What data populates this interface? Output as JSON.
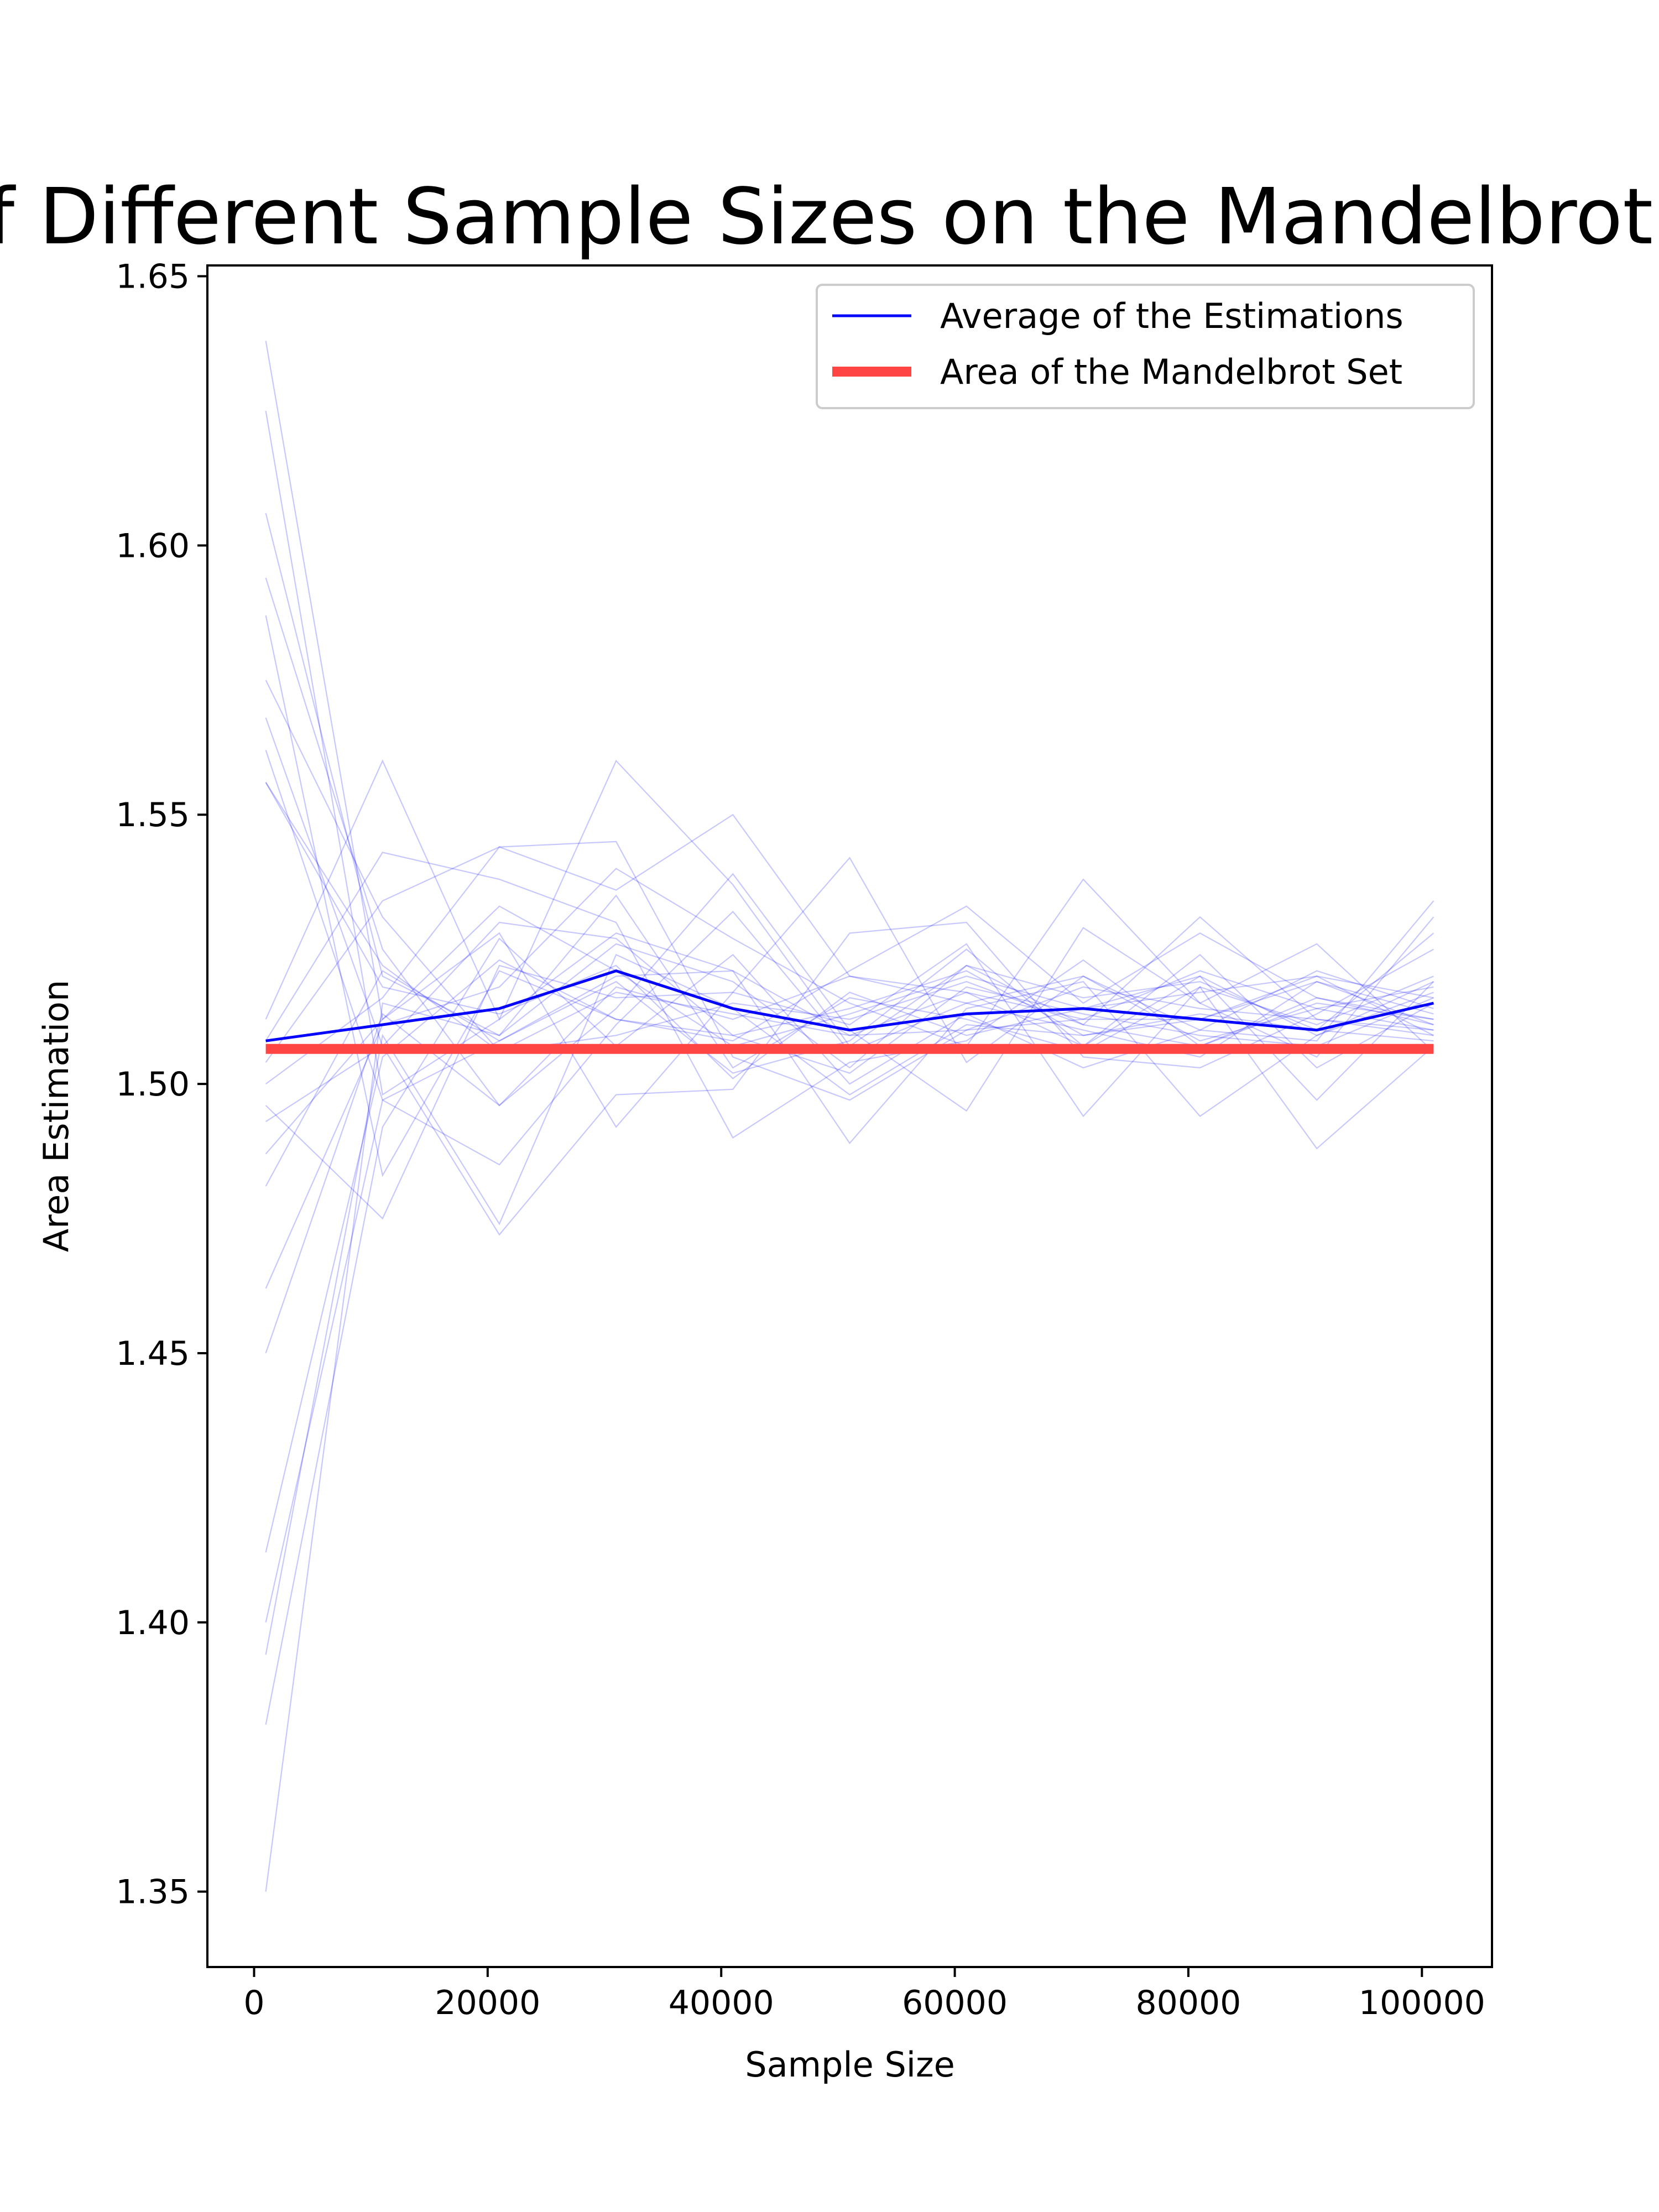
{
  "chart_data": {
    "type": "line",
    "title": "Effect of Different Sample Sizes on the Mandelbrot Set Area",
    "xlabel": "Sample Size",
    "ylabel": "Area Estimation",
    "xlim": [
      -4000,
      106000
    ],
    "ylim": [
      1.336,
      1.652
    ],
    "x_ticks": [
      0,
      20000,
      40000,
      60000,
      80000,
      100000
    ],
    "y_ticks": [
      1.35,
      1.4,
      1.45,
      1.5,
      1.55,
      1.6,
      1.65
    ],
    "x_tick_labels": [
      "0",
      "20000",
      "40000",
      "60000",
      "80000",
      "100000"
    ],
    "y_tick_labels": [
      "1.35",
      "1.40",
      "1.45",
      "1.50",
      "1.55",
      "1.60",
      "1.65"
    ],
    "grid": false,
    "legend_position": "top-right",
    "x": [
      1000,
      11000,
      21000,
      31000,
      41000,
      51000,
      61000,
      71000,
      81000,
      91000,
      101000
    ],
    "series": [
      {
        "name": "Average of the Estimations",
        "color": "#0000ff",
        "role": "average",
        "values": [
          1.508,
          1.511,
          1.514,
          1.521,
          1.514,
          1.51,
          1.513,
          1.514,
          1.512,
          1.51,
          1.515
        ]
      },
      {
        "name": "Area of the Mandelbrot Set",
        "color": "#ff4444",
        "role": "reference",
        "values": [
          1.5065,
          1.5065,
          1.5065,
          1.5065,
          1.5065,
          1.5065,
          1.5065,
          1.5065,
          1.5065,
          1.5065,
          1.5065
        ]
      }
    ],
    "runs": {
      "color": "#0000ff",
      "opacity": 0.22,
      "values": [
        [
          1.638,
          1.512,
          1.533,
          1.521,
          1.507,
          1.513,
          1.52,
          1.514,
          1.517,
          1.52,
          1.516
        ],
        [
          1.625,
          1.498,
          1.512,
          1.528,
          1.521,
          1.509,
          1.517,
          1.512,
          1.521,
          1.514,
          1.518
        ],
        [
          1.606,
          1.52,
          1.509,
          1.535,
          1.503,
          1.516,
          1.512,
          1.506,
          1.518,
          1.511,
          1.52
        ],
        [
          1.594,
          1.525,
          1.496,
          1.518,
          1.512,
          1.52,
          1.515,
          1.51,
          1.505,
          1.519,
          1.511
        ],
        [
          1.587,
          1.483,
          1.521,
          1.512,
          1.509,
          1.502,
          1.518,
          1.513,
          1.509,
          1.507,
          1.516
        ],
        [
          1.575,
          1.531,
          1.506,
          1.517,
          1.513,
          1.509,
          1.51,
          1.518,
          1.514,
          1.512,
          1.509
        ],
        [
          1.568,
          1.507,
          1.53,
          1.527,
          1.509,
          1.514,
          1.521,
          1.509,
          1.512,
          1.519,
          1.513
        ],
        [
          1.562,
          1.497,
          1.485,
          1.511,
          1.532,
          1.506,
          1.515,
          1.52,
          1.508,
          1.514,
          1.51
        ],
        [
          1.556,
          1.518,
          1.513,
          1.522,
          1.501,
          1.517,
          1.509,
          1.514,
          1.52,
          1.509,
          1.517
        ],
        [
          1.556,
          1.522,
          1.506,
          1.509,
          1.515,
          1.512,
          1.519,
          1.511,
          1.507,
          1.516,
          1.512
        ],
        [
          1.512,
          1.56,
          1.512,
          1.56,
          1.537,
          1.507,
          1.522,
          1.516,
          1.519,
          1.51,
          1.528
        ],
        [
          1.508,
          1.543,
          1.538,
          1.53,
          1.49,
          1.504,
          1.508,
          1.523,
          1.507,
          1.515,
          1.512
        ],
        [
          1.504,
          1.534,
          1.544,
          1.545,
          1.505,
          1.497,
          1.51,
          1.512,
          1.512,
          1.52,
          1.509
        ],
        [
          1.5,
          1.516,
          1.544,
          1.536,
          1.55,
          1.52,
          1.517,
          1.507,
          1.524,
          1.503,
          1.515
        ],
        [
          1.496,
          1.475,
          1.522,
          1.516,
          1.517,
          1.542,
          1.504,
          1.52,
          1.51,
          1.508,
          1.534
        ],
        [
          1.493,
          1.507,
          1.472,
          1.498,
          1.499,
          1.528,
          1.53,
          1.505,
          1.503,
          1.513,
          1.525
        ],
        [
          1.487,
          1.512,
          1.528,
          1.492,
          1.517,
          1.511,
          1.526,
          1.494,
          1.518,
          1.488,
          1.507
        ],
        [
          1.481,
          1.521,
          1.508,
          1.52,
          1.521,
          1.489,
          1.514,
          1.519,
          1.494,
          1.509,
          1.519
        ],
        [
          1.462,
          1.511,
          1.518,
          1.54,
          1.527,
          1.515,
          1.507,
          1.538,
          1.515,
          1.526,
          1.506
        ],
        [
          1.45,
          1.513,
          1.496,
          1.514,
          1.539,
          1.51,
          1.495,
          1.529,
          1.515,
          1.505,
          1.531
        ],
        [
          1.413,
          1.505,
          1.523,
          1.512,
          1.508,
          1.521,
          1.533,
          1.515,
          1.528,
          1.516,
          1.511
        ],
        [
          1.4,
          1.497,
          1.508,
          1.519,
          1.502,
          1.508,
          1.525,
          1.507,
          1.52,
          1.497,
          1.519
        ],
        [
          1.394,
          1.509,
          1.474,
          1.524,
          1.514,
          1.498,
          1.511,
          1.509,
          1.513,
          1.51,
          1.508
        ],
        [
          1.381,
          1.492,
          1.527,
          1.507,
          1.524,
          1.5,
          1.513,
          1.503,
          1.51,
          1.521,
          1.514
        ],
        [
          1.35,
          1.515,
          1.509,
          1.526,
          1.519,
          1.503,
          1.522,
          1.511,
          1.531,
          1.512,
          1.51
        ]
      ]
    }
  }
}
